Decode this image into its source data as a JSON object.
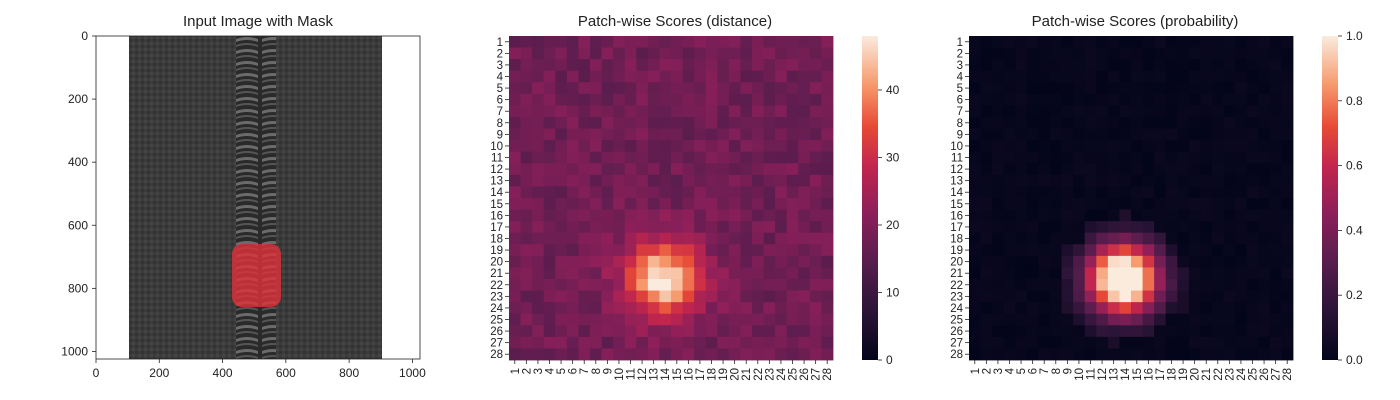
{
  "panels": {
    "image": {
      "title": "Input Image with Mask"
    },
    "distance": {
      "title": "Patch-wise Scores (distance)"
    },
    "probability": {
      "title": "Patch-wise Scores (probability)"
    }
  },
  "chart_data": [
    {
      "type": "image",
      "title": "Input Image with Mask",
      "xlim": [
        0,
        1024
      ],
      "ylim": [
        1024,
        0
      ],
      "xticks": [
        0,
        200,
        400,
        600,
        800,
        1000
      ],
      "yticks": [
        0,
        200,
        400,
        600,
        800,
        1000
      ],
      "content": "black zipper photo with red defect mask on zipper teeth",
      "mask_region": {
        "x": [
          430,
          570
        ],
        "y": [
          660,
          860
        ],
        "color": "#e0323a"
      },
      "zipper_fabric_x": [
        105,
        900
      ],
      "zipper_teeth_x": [
        440,
        570
      ]
    },
    {
      "type": "heatmap",
      "title": "Patch-wise Scores (distance)",
      "rows": 28,
      "cols": 28,
      "tick_labels": [
        "1",
        "2",
        "3",
        "4",
        "5",
        "6",
        "7",
        "8",
        "9",
        "10",
        "11",
        "12",
        "13",
        "14",
        "15",
        "16",
        "17",
        "18",
        "19",
        "20",
        "21",
        "22",
        "23",
        "24",
        "25",
        "26",
        "27",
        "28"
      ],
      "colorbar": {
        "min": 0,
        "max": 48,
        "ticks": [
          0,
          10,
          20,
          30,
          40
        ]
      },
      "colormap": "rocket",
      "background_value": 18,
      "hotspot": {
        "center_row": 21.5,
        "center_col": 13.8,
        "peak": 47,
        "sigma": 2.3
      }
    },
    {
      "type": "heatmap",
      "title": "Patch-wise Scores (probability)",
      "rows": 28,
      "cols": 28,
      "tick_labels": [
        "1",
        "2",
        "3",
        "4",
        "5",
        "6",
        "7",
        "8",
        "9",
        "10",
        "11",
        "12",
        "13",
        "14",
        "15",
        "16",
        "17",
        "18",
        "19",
        "20",
        "21",
        "22",
        "23",
        "24",
        "25",
        "26",
        "27",
        "28"
      ],
      "colorbar": {
        "min": 0.0,
        "max": 1.0,
        "ticks": [
          "0.0",
          "0.2",
          "0.4",
          "0.6",
          "0.8",
          "1.0"
        ]
      },
      "colormap": "rocket",
      "background_value": 0.0,
      "hotspot": {
        "center_row": 21.5,
        "center_col": 13.8,
        "peak": 1.0,
        "sigma": 2.3
      }
    }
  ]
}
